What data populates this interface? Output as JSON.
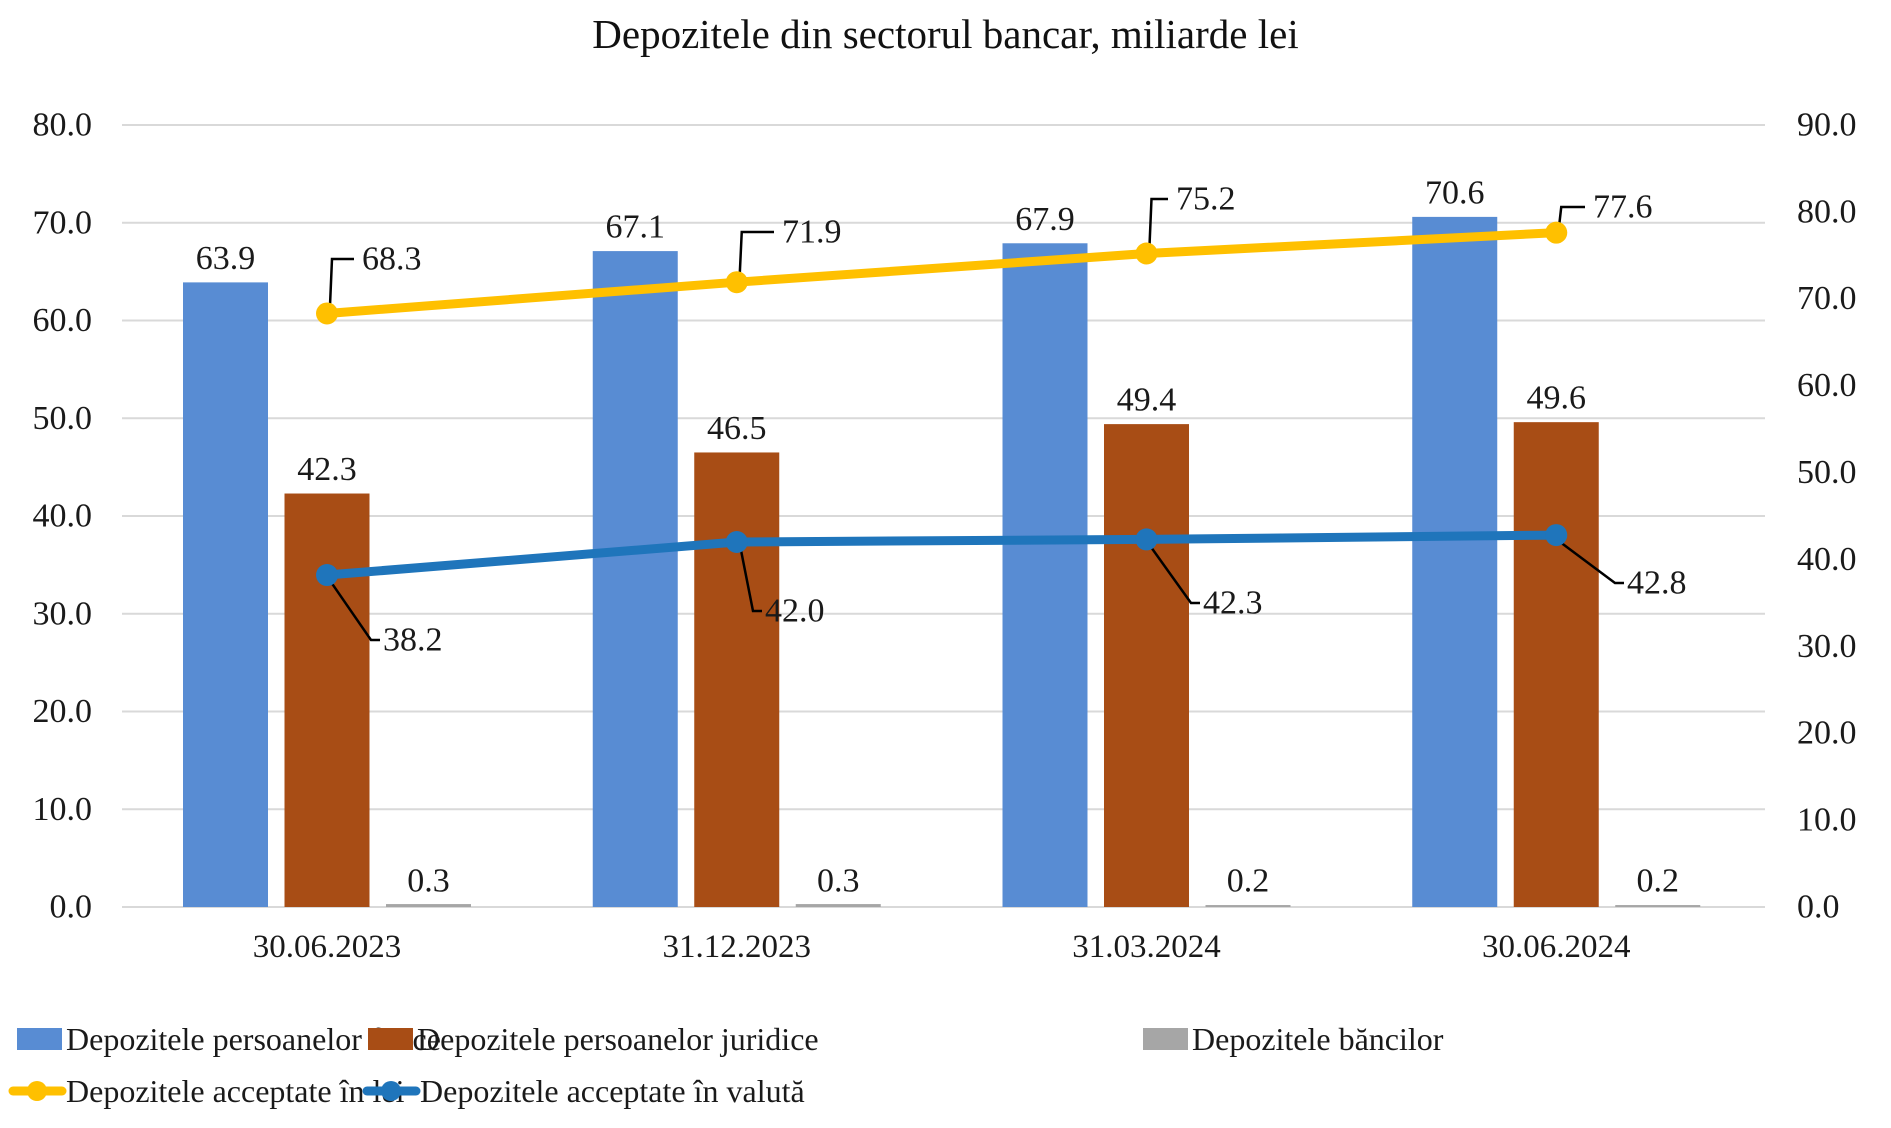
{
  "chart_data": {
    "type": "bar",
    "title": "Depozitele din sectorul bancar, miliarde lei",
    "categories": [
      "30.06.2023",
      "31.12.2023",
      "31.03.2024",
      "30.06.2024"
    ],
    "bar_series": [
      {
        "name": "Depozitele persoanelor fizice",
        "color": "#588CD3",
        "axis": "left",
        "values": [
          63.9,
          67.1,
          67.9,
          70.6
        ]
      },
      {
        "name": "Depozitele persoanelor juridice",
        "color": "#A84D15",
        "axis": "left",
        "values": [
          42.3,
          46.5,
          49.4,
          49.6
        ]
      },
      {
        "name": "Depozitele băncilor",
        "color": "#A6A6A6",
        "axis": "left",
        "values": [
          0.3,
          0.3,
          0.2,
          0.2
        ]
      }
    ],
    "line_series": [
      {
        "name": "Depozitele acceptate în lei",
        "color": "#FFC000",
        "axis": "right",
        "values": [
          68.3,
          71.9,
          75.2,
          77.6
        ],
        "label_side": "above"
      },
      {
        "name": "Depozitele acceptate în valută",
        "color": "#1F75BB",
        "axis": "right",
        "values": [
          38.2,
          42.0,
          42.3,
          42.8
        ],
        "label_side": "below"
      }
    ],
    "left_axis": {
      "min": 0,
      "max": 80,
      "step": 10,
      "tick_labels": [
        "0.0",
        "10.0",
        "20.0",
        "30.0",
        "40.0",
        "50.0",
        "60.0",
        "70.0",
        "80.0"
      ]
    },
    "right_axis": {
      "min": 0,
      "max": 90,
      "step": 10,
      "tick_labels": [
        "0.0",
        "10.0",
        "20.0",
        "30.0",
        "40.0",
        "50.0",
        "60.0",
        "70.0",
        "80.0",
        "90.0"
      ]
    },
    "grid": true,
    "legend_position": "bottom",
    "value_label_decimals": 1,
    "colors": {
      "gridline": "#D9D9D9",
      "axis_line": "#D9D9D9",
      "text": "#1A1A1A",
      "leader": "#000000",
      "background": "#FFFFFF"
    }
  }
}
